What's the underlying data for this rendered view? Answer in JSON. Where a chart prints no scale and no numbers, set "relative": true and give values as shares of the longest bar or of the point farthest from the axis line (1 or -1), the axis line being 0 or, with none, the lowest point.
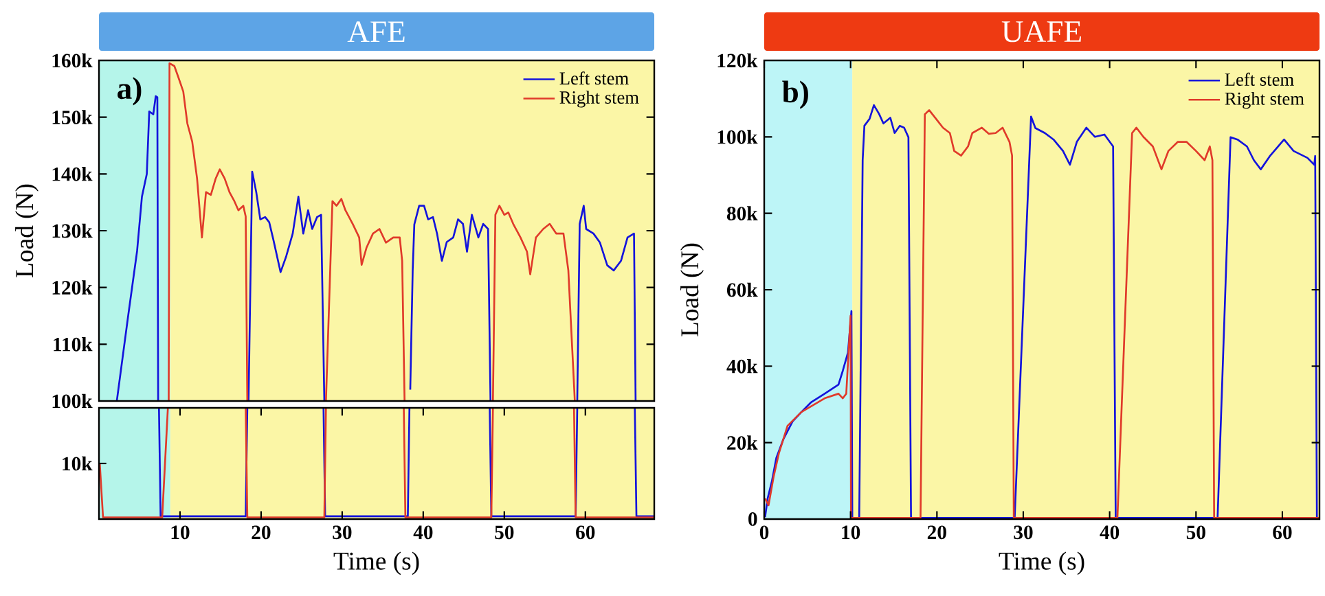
{
  "chart_data": [
    {
      "type": "line",
      "title": "AFE",
      "ylabel": "Load (N)",
      "annotations": [
        "a)"
      ],
      "legend": "top right",
      "tick_labels": "y",
      "xlim": [
        0,
        68.5
      ],
      "ylim": [
        100000,
        160000
      ],
      "yticks": [
        {
          "value": 100000,
          "label": "100k"
        },
        {
          "value": 110000,
          "label": "110k"
        },
        {
          "value": 120000,
          "label": "120k"
        },
        {
          "value": 130000,
          "label": "130k"
        },
        {
          "value": 140000,
          "label": "140k"
        },
        {
          "value": 150000,
          "label": "150k"
        },
        {
          "value": 160000,
          "label": "160k"
        }
      ],
      "bands": [
        {
          "axis": "x",
          "from": 0,
          "to": 8.8,
          "color": "#b5f5ea"
        },
        {
          "axis": "x",
          "from": 8.8,
          "to": 68.5,
          "color": "#fbf6a6"
        }
      ],
      "series": [
        {
          "name": "Left stem",
          "color": "#1414dc",
          "x": [
            2.2,
            3.6,
            4.7,
            5.3,
            5.9,
            6.2,
            6.7,
            7.0,
            7.2,
            7.3,
            7.5,
            18.45,
            18.9,
            19.4,
            19.9,
            20.5,
            21,
            21.5,
            22.4,
            23.1,
            23.9,
            24.6,
            25.2,
            25.8,
            26.3,
            26.9,
            27.4,
            27.8,
            28,
            38.4,
            38.7,
            38.9,
            39.5,
            40.1,
            40.6,
            41.2,
            41.7,
            42.3,
            42.9,
            43.7,
            44.3,
            44.9,
            45.4,
            46,
            46.8,
            47.4,
            48,
            48.3,
            48.5,
            59,
            59.3,
            59.8,
            60.1,
            61,
            61.8,
            62.7,
            63.5,
            64.4,
            65.2,
            66,
            66.2
          ],
          "values": [
            100000,
            115000,
            126400,
            136000,
            140000,
            151000,
            150500,
            153700,
            153500,
            100000,
            null,
            100000,
            140400,
            136800,
            132000,
            132400,
            131500,
            128500,
            122700,
            125500,
            129500,
            136000,
            129500,
            133600,
            130300,
            132400,
            132800,
            100000,
            null,
            102000,
            123000,
            131100,
            134400,
            134400,
            132000,
            132400,
            129500,
            124700,
            128000,
            128800,
            132000,
            131200,
            126300,
            132800,
            128800,
            131200,
            130300,
            100000,
            null,
            100000,
            131200,
            134400,
            130300,
            129500,
            127900,
            123900,
            123000,
            124700,
            128800,
            129500,
            100000
          ]
        },
        {
          "name": "Right stem",
          "color": "#e03a2a",
          "x": [
            8.6,
            8.7,
            9.3,
            9.8,
            10.4,
            10.9,
            11.5,
            12.1,
            12.7,
            13.2,
            13.8,
            14.4,
            14.9,
            15.5,
            16.1,
            16.7,
            17.2,
            17.8,
            18.1,
            18.3,
            18.5,
            28,
            28.8,
            29.3,
            29.9,
            30.4,
            31.3,
            32.1,
            32.4,
            33,
            33.8,
            34.6,
            35.4,
            36.3,
            37.1,
            37.4,
            37.7,
            37.9,
            48.6,
            48.9,
            49.4,
            50,
            50.5,
            51.1,
            52,
            52.8,
            53.2,
            53.9,
            54.8,
            55.6,
            56.4,
            57.3,
            57.9,
            58.7
          ],
          "values": [
            100000,
            159500,
            159000,
            157000,
            154500,
            148900,
            145700,
            139200,
            128800,
            136800,
            136300,
            139200,
            140800,
            139200,
            136800,
            135200,
            133600,
            134400,
            132500,
            100000,
            null,
            100000,
            135200,
            134400,
            135600,
            133600,
            131200,
            128800,
            124000,
            127000,
            129500,
            130300,
            127900,
            128800,
            128800,
            124700,
            100000,
            null,
            100000,
            132800,
            134400,
            132800,
            133200,
            131200,
            128800,
            126300,
            122300,
            128800,
            130300,
            131200,
            129500,
            129500,
            123000,
            100000
          ]
        }
      ]
    },
    {
      "type": "line",
      "xlabel": "Time (s)",
      "relative": true,
      "annotations": [
        "10k"
      ],
      "xlim": [
        0,
        68.5
      ],
      "xticks": [
        10,
        20,
        30,
        40,
        50,
        60
      ],
      "bands": [
        {
          "axis": "x",
          "from": 0,
          "to": 8.8,
          "color": "#b5f5ea"
        },
        {
          "axis": "x",
          "from": 8.8,
          "to": 68.5,
          "color": "#fbf6a6"
        }
      ],
      "series": [
        {
          "color": "#1414dc",
          "x": [
            7.4,
            7.6,
            18.1,
            18.3,
            18.5,
            27.7,
            27.9,
            38.1,
            38.3,
            38.5,
            48.2,
            48.4,
            58.8,
            59,
            59.2,
            66.1,
            66.3,
            68.5
          ],
          "values": [
            1,
            0.025,
            0.025,
            1,
            null,
            1,
            0.025,
            0.025,
            1,
            null,
            1,
            0.025,
            0.025,
            1,
            null,
            1,
            0.025,
            0.025
          ]
        },
        {
          "color": "#e03a2a",
          "x": [
            0.1,
            0.5,
            7.8,
            8.5,
            8.7,
            18.1,
            18.3,
            27.8,
            28,
            28.2,
            37.6,
            37.8,
            48.4,
            48.6,
            48.8,
            58.6,
            58.8,
            68.5
          ],
          "values": [
            0.5,
            0.015,
            0.015,
            1,
            null,
            1,
            0.015,
            0.015,
            1,
            null,
            1,
            0.015,
            0.015,
            1,
            null,
            1,
            0.015,
            0.015
          ]
        }
      ]
    },
    {
      "type": "line",
      "title": "UAFE",
      "xlabel": "Time (s)",
      "ylabel": "Load (N)",
      "annotations": [
        "b)"
      ],
      "legend": "top right",
      "xlim": [
        0,
        64.3
      ],
      "ylim": [
        0,
        120000
      ],
      "xticks": [
        0,
        10,
        20,
        30,
        40,
        50,
        60
      ],
      "yticks": [
        0,
        {
          "value": 20000,
          "label": "20k"
        },
        {
          "value": 40000,
          "label": "40k"
        },
        {
          "value": 60000,
          "label": "60k"
        },
        {
          "value": 80000,
          "label": "80k"
        },
        {
          "value": 100000,
          "label": "100k"
        },
        {
          "value": 120000,
          "label": "120k"
        }
      ],
      "bands": [
        {
          "axis": "x",
          "from": 0,
          "to": 10.2,
          "color": "#bdf5f7"
        },
        {
          "axis": "x",
          "from": 10.2,
          "to": 64.3,
          "color": "#fbf6a6"
        }
      ],
      "series": [
        {
          "name": "Left stem",
          "color": "#1414dc",
          "x": [
            0.1,
            0.4,
            0.9,
            1.4,
            2.2,
            3.3,
            4.3,
            5.4,
            7,
            8.6,
            9.1,
            9.7,
            10.1,
            10.2,
            11,
            11.4,
            11.6,
            12.2,
            12.7,
            13.3,
            13.8,
            14.6,
            15.1,
            15.7,
            16.2,
            16.7,
            17,
            29,
            30.9,
            31.4,
            32.5,
            33.5,
            34.6,
            35.4,
            36.2,
            37.3,
            38.3,
            39.4,
            40.4,
            40.7,
            52.5,
            54,
            54.8,
            55.9,
            56.7,
            57.5,
            58.6,
            60.2,
            61.3,
            62.9,
            63.7,
            63.8,
            64,
            64.3
          ],
          "values": [
            500,
            5400,
            10000,
            16000,
            20800,
            25600,
            28000,
            30500,
            32800,
            35200,
            38800,
            43600,
            54400,
            300,
            300,
            93900,
            102900,
            104700,
            108300,
            106000,
            103500,
            105000,
            101000,
            102900,
            102400,
            99900,
            300,
            300,
            105300,
            102300,
            101000,
            99300,
            96300,
            92700,
            98700,
            102400,
            100000,
            100600,
            97500,
            300,
            300,
            99900,
            99300,
            97500,
            93900,
            91500,
            95100,
            99300,
            96300,
            94500,
            92700,
            95000,
            300,
            300
          ]
        },
        {
          "name": "Right stem",
          "color": "#e03a2a",
          "x": [
            0.1,
            0.5,
            1.1,
            1.7,
            2.7,
            4.3,
            7,
            8.6,
            9.1,
            9.5,
            10,
            10.05,
            18.1,
            18.6,
            19.1,
            19.9,
            20.7,
            21.5,
            22,
            22.8,
            23.6,
            24.1,
            25.2,
            26,
            26.8,
            27.6,
            28.4,
            28.7,
            28.9,
            40.9,
            42.6,
            43.1,
            43.9,
            45,
            46,
            46.8,
            47.9,
            48.9,
            50,
            51,
            51.6,
            51.9,
            52.1,
            64.3
          ],
          "values": [
            5400,
            3600,
            11200,
            17200,
            24400,
            28000,
            31600,
            32800,
            31600,
            32800,
            53200,
            300,
            300,
            105900,
            107000,
            104700,
            102400,
            101000,
            96300,
            95100,
            97500,
            101000,
            102400,
            100800,
            101000,
            102400,
            98700,
            95100,
            300,
            300,
            101000,
            102400,
            100000,
            97500,
            91500,
            96300,
            98700,
            98700,
            96300,
            93900,
            97500,
            93900,
            300,
            300
          ]
        }
      ]
    }
  ]
}
